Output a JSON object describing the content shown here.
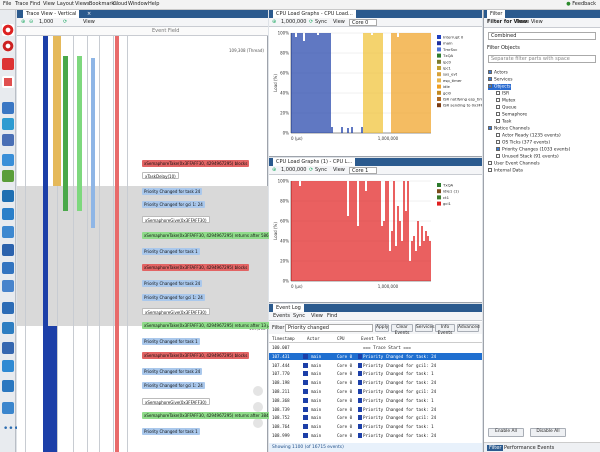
{
  "menu": [
    "File",
    "Trace",
    "Find",
    "View",
    "Layout",
    "Views",
    "Bookmarks",
    "Cloud",
    "Window",
    "Help"
  ],
  "feedback": "Feedback",
  "trace_view": {
    "tab": "Trace View - Vertical",
    "zoom": "1,000",
    "view_label": "View",
    "event_field": "Event Field",
    "timestamp_top": "109,308 (Thread)",
    "timestamp_mid": "109,508",
    "events": [
      {
        "label": "xSemaphoreTake(0x3FFAFF30, 4294967295) blocks",
        "color": "red"
      },
      {
        "label": "xTaskDelay(10)",
        "color": "white"
      },
      {
        "label": "Priority Changed for task 24",
        "color": "blue"
      },
      {
        "label": "Priority Changed for gci 1: 24",
        "color": "blue"
      },
      {
        "label": "xSemaphoreGive(0x3FFAFF30)",
        "color": "white"
      },
      {
        "label": "xSemaphoreTake(0x3FFAFF30, 4294967295) returns after 586 µs",
        "color": "green"
      },
      {
        "label": "Priority Changed for task 1",
        "color": "blue"
      },
      {
        "label": "xSemaphoreTake(0x3FFAFF30, 4294967295) blocks",
        "color": "red"
      },
      {
        "label": "Priority Changed for task 24",
        "color": "blue"
      },
      {
        "label": "Priority Changed for gci 1: 24",
        "color": "blue"
      },
      {
        "label": "xSemaphoreGive(0x3FFAFF30)",
        "color": "white"
      },
      {
        "label": "xSemaphoreTake(0x3FFAFF30, 4294967295) returns after 13 µs",
        "color": "green"
      },
      {
        "label": "Priority Changed for task 1",
        "color": "blue"
      },
      {
        "label": "xSemaphoreTake(0x3FFAFF30, 4294967295) blocks",
        "color": "red"
      },
      {
        "label": "Priority Changed for task 24",
        "color": "blue"
      },
      {
        "label": "Priority Changed for gci 1: 24",
        "color": "blue"
      },
      {
        "label": "xSemaphoreGive(0x3FFAFF30)",
        "color": "white"
      },
      {
        "label": "xSemaphoreTake(0x3FFAFF30, 4294967295) returns after 384 µs",
        "color": "green"
      },
      {
        "label": "Priority Changed for task 1",
        "color": "blue"
      }
    ]
  },
  "cpu_graph_top": {
    "tab": "CPU Load Graphs - CPU Load...",
    "zoom": "1,000,000",
    "sync": "Sync",
    "view": "View",
    "core": "Core 0",
    "x_start": "0 (µs)",
    "x_mid": "1,000,000",
    "ylabel": "Load (%)",
    "yticks": [
      "100%",
      "80%",
      "60%",
      "40%",
      "20%",
      "0%"
    ],
    "legend": [
      {
        "name": "Interrupt 0",
        "color": "#1f3fbf"
      },
      {
        "name": "main",
        "color": "#1d2f9e"
      },
      {
        "name": "TmrSvc",
        "color": "#4e71d8"
      },
      {
        "name": "TxQA",
        "color": "#2d7b2d"
      },
      {
        "name": "ipc0",
        "color": "#7c7c2e"
      },
      {
        "name": "ipc1",
        "color": "#c0a030"
      },
      {
        "name": "sys_evt",
        "color": "#d7a23a"
      },
      {
        "name": "esp_timer",
        "color": "#e7b54a"
      },
      {
        "name": "idle",
        "color": "#f0a020"
      },
      {
        "name": "gci0",
        "color": "#c48a20"
      },
      {
        "name": "ISR notifying esp_timer",
        "color": "#b06a20"
      },
      {
        "name": "ISR sending to 0x3FFC2398C",
        "color": "#7a3a10"
      }
    ]
  },
  "cpu_graph_bottom": {
    "tab": "CPU Load Graphs (1) - CPU L...",
    "zoom": "1,000,000",
    "sync": "Sync",
    "view": "View",
    "core": "Core 1",
    "x_start": "0 (µs)",
    "x_mid": "1,000,000",
    "ylabel": "Load (%)",
    "yticks": [
      "100%",
      "80%",
      "60%",
      "40%",
      "20%",
      "0%"
    ],
    "legend": [
      {
        "name": "TxQA",
        "color": "#2d7b2d"
      },
      {
        "name": "idle1 (1)",
        "color": "#7c4a1a"
      },
      {
        "name": "ct1",
        "color": "#3a7a2a"
      },
      {
        "name": "gci1",
        "color": "#e02020"
      }
    ]
  },
  "event_log": {
    "tab": "Event Log",
    "toolbar": [
      "Events",
      "Sync",
      "View",
      "Find"
    ],
    "filter_label": "Filter",
    "filter_value": "Priority changed",
    "buttons": [
      "Apply",
      "Clear Events",
      "Services",
      "Info Events",
      "Advanced"
    ],
    "columns": [
      "Timestamp",
      "Actor",
      "CPU",
      "Event Text"
    ],
    "rows": [
      {
        "ts": "100.007",
        "actor": "",
        "cpu": "",
        "text": "=== Trace Start ==="
      },
      {
        "ts": "107.431",
        "actor": "main",
        "cpu": "Core 0",
        "text": "Priority Changed for task: 24"
      },
      {
        "ts": "107.444",
        "actor": "main",
        "cpu": "Core 0",
        "text": "Priority Changed for gci1: 24"
      },
      {
        "ts": "107.770",
        "actor": "main",
        "cpu": "Core 0",
        "text": "Priority Changed for task: 1"
      },
      {
        "ts": "108.198",
        "actor": "main",
        "cpu": "Core 0",
        "text": "Priority Changed for task: 24"
      },
      {
        "ts": "108.211",
        "actor": "main",
        "cpu": "Core 0",
        "text": "Priority Changed for gci1: 24"
      },
      {
        "ts": "108.368",
        "actor": "main",
        "cpu": "Core 0",
        "text": "Priority Changed for task: 1"
      },
      {
        "ts": "108.739",
        "actor": "main",
        "cpu": "Core 0",
        "text": "Priority Changed for task: 24"
      },
      {
        "ts": "108.752",
        "actor": "main",
        "cpu": "Core 0",
        "text": "Priority Changed for gci1: 24"
      },
      {
        "ts": "108.764",
        "actor": "main",
        "cpu": "Core 0",
        "text": "Priority Changed for task: 1"
      },
      {
        "ts": "108.999",
        "actor": "main",
        "cpu": "Core 0",
        "text": "Priority Changed for task: 24"
      }
    ],
    "status": "Showing 1100 (of 16715 events)"
  },
  "filter_panel": {
    "tab": "Filter",
    "subtabs": [
      "Filter for View",
      "Trace View"
    ],
    "mode": "Combined",
    "section": "Filter Objects",
    "search_placeholder": "Separate filter parts with space",
    "tree": [
      {
        "label": "Actors",
        "level": 0,
        "checked": true
      },
      {
        "label": "Services",
        "level": 0,
        "checked": true
      },
      {
        "label": "Objects",
        "level": 0,
        "checked": true,
        "selected": true
      },
      {
        "label": "ISR",
        "level": 1,
        "checked": false
      },
      {
        "label": "Mutex",
        "level": 1,
        "checked": false
      },
      {
        "label": "Queue",
        "level": 1,
        "checked": false
      },
      {
        "label": "Semaphore",
        "level": 1,
        "checked": false
      },
      {
        "label": "Task",
        "level": 1,
        "checked": false
      },
      {
        "label": "Notice Channels",
        "level": 0,
        "checked": true
      },
      {
        "label": "Actor Ready (1235 events)",
        "level": 1,
        "checked": false
      },
      {
        "label": "OS Ticks (377 events)",
        "level": 1,
        "checked": false
      },
      {
        "label": "Priority Changes (1033 events)",
        "level": 1,
        "checked": true
      },
      {
        "label": "Unused Stack (91 events)",
        "level": 1,
        "checked": false
      },
      {
        "label": "User Event Channels",
        "level": 0,
        "checked": false
      },
      {
        "label": "Internal Data",
        "level": 0,
        "checked": false
      }
    ],
    "enable_all": "Enable All",
    "disable_all": "Disable All",
    "bottom_tabs": [
      "Filter",
      "Performance Events"
    ]
  }
}
